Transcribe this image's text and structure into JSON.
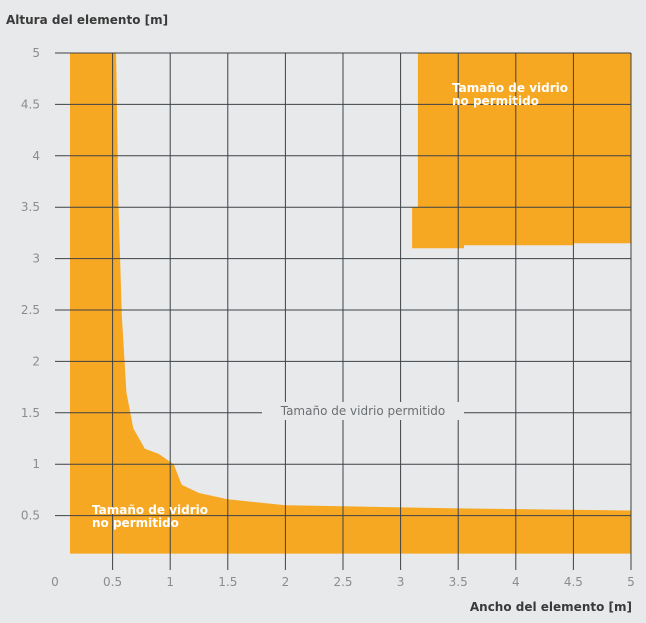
{
  "chart_data": {
    "type": "area",
    "xlabel": "Ancho del elemento [m]",
    "ylabel": "Altura del elemento [m]",
    "xlim": [
      0,
      5
    ],
    "ylim": [
      0,
      5
    ],
    "xticks": [
      "0",
      "0.5",
      "1",
      "1.5",
      "2",
      "2.5",
      "3",
      "3.5",
      "4",
      "4.5",
      "5"
    ],
    "yticks": [
      "0.5",
      "1",
      "1.5",
      "2",
      "2.5",
      "3",
      "3.5",
      "4",
      "4.5",
      "5"
    ],
    "grid": true,
    "fill_color": "#f7a823",
    "series": [
      {
        "region": "restricted-small",
        "boundary": [
          [
            0.13,
            5.0
          ],
          [
            0.53,
            5.0
          ],
          [
            0.55,
            3.55
          ],
          [
            0.58,
            2.45
          ],
          [
            0.62,
            1.7
          ],
          [
            0.68,
            1.35
          ],
          [
            0.78,
            1.15
          ],
          [
            0.9,
            1.1
          ],
          [
            1.03,
            1.0
          ],
          [
            1.1,
            0.8
          ],
          [
            1.25,
            0.72
          ],
          [
            1.5,
            0.66
          ],
          [
            2.0,
            0.6
          ],
          [
            2.5,
            0.59
          ],
          [
            3.5,
            0.57
          ],
          [
            5.0,
            0.55
          ],
          [
            5.0,
            0.13
          ],
          [
            0.13,
            0.13
          ]
        ]
      },
      {
        "region": "restricted-large",
        "boundary": [
          [
            3.15,
            5.0
          ],
          [
            5.0,
            5.0
          ],
          [
            5.0,
            3.15
          ],
          [
            4.5,
            3.15
          ],
          [
            4.5,
            3.13
          ],
          [
            3.55,
            3.13
          ],
          [
            3.55,
            3.1
          ],
          [
            3.1,
            3.1
          ],
          [
            3.1,
            3.5
          ],
          [
            3.15,
            3.5
          ]
        ]
      }
    ],
    "annotations": {
      "allowed": "Tamaño de vidrio permitido",
      "not_allowed_top_1": "Tamaño de vidrio",
      "not_allowed_top_2": "no permitido",
      "not_allowed_bottom_1": "Tamaño de vidrio",
      "not_allowed_bottom_2": "no permitido"
    }
  }
}
